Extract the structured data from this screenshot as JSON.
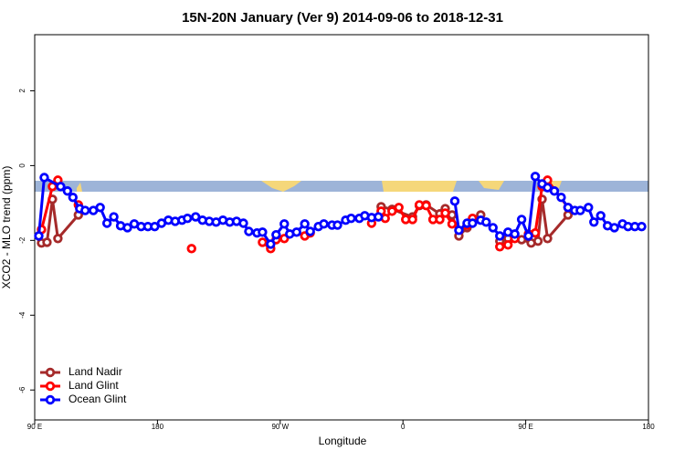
{
  "chart_data": {
    "type": "line",
    "title": "15N-20N January (Ver 9)   2014-09-06 to 2018-12-31",
    "x_label": "Longitude",
    "y_label": "XCO2 - MLO trend (ppm)",
    "xlim": [
      90,
      540
    ],
    "ylim": [
      -6.8,
      3.5
    ],
    "xticks": [
      {
        "value": 90,
        "label": "90 E"
      },
      180,
      {
        "value": 270,
        "label": "90 W"
      },
      {
        "value": 360,
        "label": "0"
      },
      {
        "value": 450,
        "label": "90 E"
      },
      {
        "value": 540,
        "label": "180"
      }
    ],
    "yticks": [
      2,
      0,
      -2,
      -4,
      -6
    ],
    "legend": "bottom-left",
    "series": [
      {
        "name": "Land Nadir",
        "color": "#a52a2a",
        "x": [
          95,
          99,
          103,
          107,
          122,
          null,
          344,
          352,
          367,
          372,
          377,
          387,
          391,
          396,
          401,
          407,
          411,
          417,
          null,
          431,
          437,
          447,
          454,
          459,
          462,
          466,
          481
        ],
        "values": [
          -2.07,
          -2.05,
          -0.9,
          -1.95,
          -1.32,
          null,
          -1.1,
          -1.17,
          -1.37,
          -1.07,
          -1.05,
          -1.29,
          -1.15,
          -1.32,
          -1.88,
          -1.66,
          -1.44,
          -1.32,
          null,
          -2.02,
          -1.95,
          -1.98,
          -2.07,
          -2.02,
          -0.9,
          -1.95,
          -1.32
        ]
      },
      {
        "name": "Land Glint",
        "color": "#ff0000",
        "x": [
          95,
          103,
          107,
          122,
          null,
          205,
          null,
          257,
          263,
          267,
          273,
          null,
          288,
          292,
          null,
          337,
          344,
          347,
          352,
          357,
          362,
          367,
          372,
          377,
          382,
          387,
          391,
          396,
          null,
          407,
          411,
          null,
          431,
          437,
          442,
          null,
          452,
          457,
          462,
          466,
          481
        ],
        "values": [
          -1.71,
          -0.56,
          -0.39,
          -1.05,
          null,
          -2.22,
          null,
          -2.05,
          -2.22,
          -1.98,
          -1.95,
          null,
          -1.88,
          -1.8,
          null,
          -1.54,
          -1.22,
          -1.41,
          -1.22,
          -1.12,
          -1.44,
          -1.44,
          -1.05,
          -1.07,
          -1.44,
          -1.44,
          -1.27,
          -1.56,
          null,
          -1.59,
          -1.41,
          null,
          -2.17,
          -2.12,
          -1.95,
          null,
          -1.83,
          -1.8,
          -0.56,
          -0.39,
          -1.12
        ]
      },
      {
        "name": "Ocean Glint",
        "color": "#0000ff",
        "x": [
          93,
          97,
          109,
          114,
          118,
          123,
          127,
          133,
          138,
          143,
          148,
          153,
          158,
          163,
          168,
          173,
          178,
          183,
          188,
          193,
          198,
          202,
          208,
          213,
          218,
          223,
          228,
          233,
          238,
          243,
          247,
          253,
          257,
          263,
          267,
          273,
          277,
          282,
          288,
          292,
          298,
          302,
          308,
          312,
          318,
          322,
          328,
          332,
          337,
          342,
          null,
          398,
          401,
          407,
          411,
          417,
          421,
          426,
          431,
          437,
          442,
          447,
          452,
          457,
          462,
          466,
          471,
          476,
          481,
          486,
          490,
          496,
          500,
          505,
          510,
          515,
          521,
          525,
          530,
          535
        ],
        "values": [
          -1.88,
          -0.32,
          -0.56,
          -0.68,
          -0.85,
          -1.15,
          -1.2,
          -1.2,
          -1.12,
          -1.54,
          -1.37,
          -1.61,
          -1.66,
          -1.56,
          -1.63,
          -1.63,
          -1.63,
          -1.54,
          -1.46,
          -1.49,
          -1.46,
          -1.41,
          -1.37,
          -1.46,
          -1.49,
          -1.51,
          -1.46,
          -1.51,
          -1.49,
          -1.54,
          -1.76,
          -1.8,
          -1.78,
          -2.1,
          -1.85,
          -1.56,
          -1.83,
          -1.78,
          -1.56,
          -1.76,
          -1.63,
          -1.56,
          -1.59,
          -1.59,
          -1.46,
          -1.41,
          -1.41,
          -1.34,
          -1.39,
          -1.37,
          null,
          -0.95,
          -1.73,
          -1.54,
          -1.54,
          -1.46,
          -1.51,
          -1.66,
          -1.88,
          -1.78,
          -1.83,
          -1.44,
          -1.88,
          -0.29,
          -0.49,
          -0.59,
          -0.68,
          -0.85,
          -1.12,
          -1.2,
          -1.2,
          -1.12,
          -1.51,
          -1.34,
          -1.61,
          -1.66,
          -1.56,
          -1.63,
          -1.63,
          -1.63
        ]
      }
    ]
  }
}
